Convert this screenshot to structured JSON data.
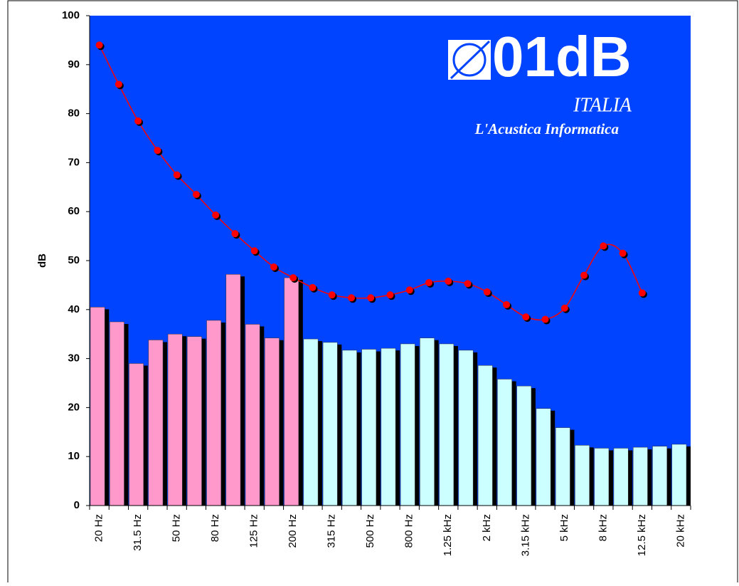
{
  "chart_data": {
    "type": "bar",
    "logo": {
      "brand": "01dB",
      "country": "ITALIA",
      "tagline": "L'Acustica Informatica"
    },
    "y_label": "dB",
    "categories": [
      "20 Hz",
      null,
      "31.5 Hz",
      null,
      "50 Hz",
      null,
      "80 Hz",
      null,
      "125 Hz",
      null,
      "200 Hz",
      null,
      "315 Hz",
      null,
      "500 Hz",
      null,
      "800 Hz",
      null,
      "1.25 kHz",
      null,
      "2 kHz",
      null,
      "3.15 kHz",
      null,
      "5 kHz",
      null,
      "8 kHz",
      null,
      "12.5 kHz",
      null,
      "20 kHz"
    ],
    "bars": {
      "values": [
        40.5,
        37.5,
        29,
        33.8,
        35,
        34.5,
        37.8,
        47.2,
        37,
        34.2,
        46.5,
        34,
        33.3,
        31.7,
        31.9,
        32.1,
        33,
        34.2,
        33,
        31.7,
        28.6,
        25.8,
        24.4,
        19.8,
        15.9,
        12.3,
        11.7,
        11.7,
        11.9,
        12.1,
        12.5
      ],
      "colors": [
        "#ff99cc",
        "#ff99cc",
        "#ff99cc",
        "#ff99cc",
        "#ff99cc",
        "#ff99cc",
        "#ff99cc",
        "#ff99cc",
        "#ff99cc",
        "#ff99cc",
        "#ff99cc",
        "#ccffff",
        "#ccffff",
        "#ccffff",
        "#ccffff",
        "#ccffff",
        "#ccffff",
        "#ccffff",
        "#ccffff",
        "#ccffff",
        "#ccffff",
        "#ccffff",
        "#ccffff",
        "#ccffff",
        "#ccffff",
        "#ccffff",
        "#ccffff",
        "#ccffff",
        "#ccffff",
        "#ccffff",
        "#ccffff"
      ]
    },
    "line": {
      "type": "line",
      "color": "#ff0000",
      "values": [
        94,
        86,
        78.5,
        72.5,
        67.5,
        63.5,
        59.3,
        55.5,
        52,
        48.7,
        46.5,
        44.5,
        43,
        42.4,
        42.4,
        43,
        44,
        45.5,
        45.8,
        45.3,
        43.6,
        41,
        38.5,
        38,
        40.3,
        47,
        53,
        51.5,
        43.4,
        null,
        null
      ]
    },
    "background": "#0044ff",
    "ylim": [
      0,
      100
    ],
    "yticks": [
      0,
      10,
      20,
      30,
      40,
      50,
      60,
      70,
      80,
      90,
      100
    ]
  }
}
